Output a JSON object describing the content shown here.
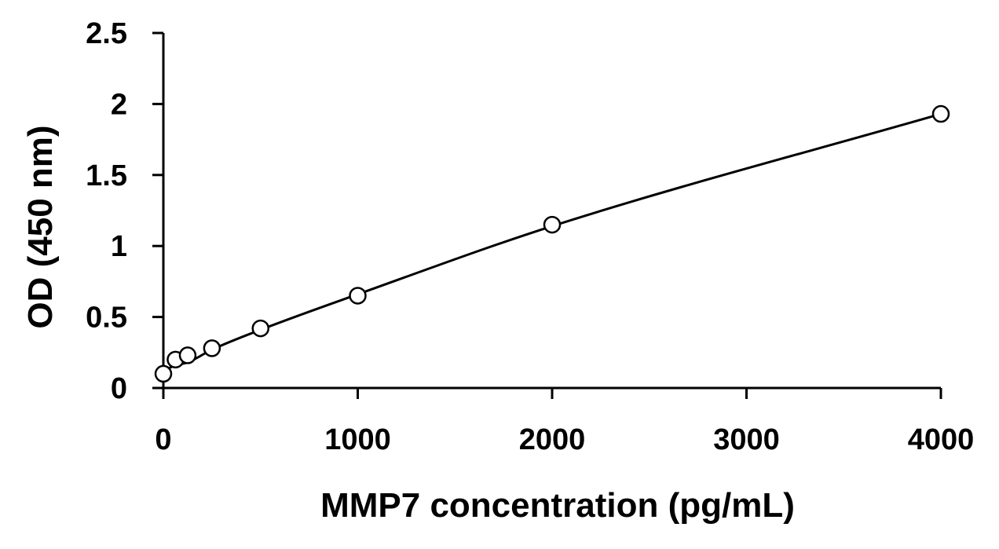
{
  "chart_data": {
    "type": "scatter",
    "title": "",
    "xlabel": "MMP7 concentration (pg/mL)",
    "ylabel": "OD (450 nm)",
    "xlim": [
      0,
      4000
    ],
    "ylim": [
      0,
      2.5
    ],
    "x_ticks": [
      0,
      1000,
      2000,
      3000,
      4000
    ],
    "y_ticks": [
      0,
      0.5,
      1,
      1.5,
      2,
      2.5
    ],
    "x_tick_labels": [
      "0",
      "1000",
      "2000",
      "3000",
      "4000"
    ],
    "y_tick_labels": [
      "0",
      "0.5",
      "1",
      "1.5",
      "2",
      "2.5"
    ],
    "grid": false,
    "legend": "none",
    "colors": {
      "axis": "#000000",
      "marker_stroke": "#000000",
      "marker_fill": "#ffffff",
      "curve": "#000000"
    },
    "series": [
      {
        "marker": "open-circle",
        "x": [
          0,
          62.5,
          125,
          250,
          500,
          1000,
          2000,
          4000
        ],
        "y": [
          0.1,
          0.2,
          0.23,
          0.28,
          0.42,
          0.65,
          1.15,
          1.93
        ]
      }
    ],
    "fit_curve": {
      "type": "smooth",
      "x": [
        0,
        62.5,
        125,
        250,
        500,
        1000,
        2000,
        4000
      ],
      "y": [
        0.12,
        0.16,
        0.18,
        0.27,
        0.41,
        0.66,
        1.14,
        1.93
      ]
    }
  }
}
